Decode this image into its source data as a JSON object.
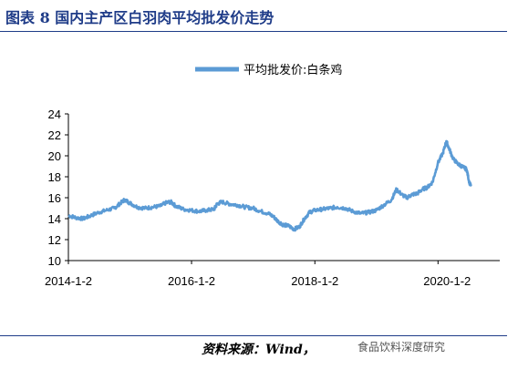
{
  "header": {
    "title": "图表 8 国内主产区白羽肉平均批发价走势"
  },
  "footer": {
    "source": "资料来源：Wind，",
    "watermark": "食品饮料深度研究"
  },
  "chart_data": {
    "type": "line",
    "title": "",
    "xlabel": "",
    "ylabel": "",
    "ylim": [
      10,
      24
    ],
    "yticks": [
      10,
      12,
      14,
      16,
      18,
      20,
      22,
      24
    ],
    "xticks": [
      "2014-1-2",
      "2016-1-2",
      "2018-1-2",
      "2020-1-2"
    ],
    "grid": false,
    "legend_position": "top-center",
    "series": [
      {
        "name": "平均批发价:白条鸡",
        "color": "#5b9bd5",
        "points": [
          [
            "2014-01-02",
            14.3
          ],
          [
            "2014-02-15",
            14.1
          ],
          [
            "2014-04-01",
            14.0
          ],
          [
            "2014-05-15",
            14.3
          ],
          [
            "2014-07-01",
            14.6
          ],
          [
            "2014-08-15",
            14.8
          ],
          [
            "2014-10-01",
            15.0
          ],
          [
            "2014-11-01",
            15.4
          ],
          [
            "2014-12-01",
            15.8
          ],
          [
            "2015-01-01",
            15.5
          ],
          [
            "2015-02-15",
            15.1
          ],
          [
            "2015-04-01",
            15.0
          ],
          [
            "2015-05-15",
            15.1
          ],
          [
            "2015-07-01",
            15.2
          ],
          [
            "2015-08-01",
            15.5
          ],
          [
            "2015-09-01",
            15.6
          ],
          [
            "2015-10-01",
            15.2
          ],
          [
            "2015-11-15",
            14.9
          ],
          [
            "2016-01-02",
            14.8
          ],
          [
            "2016-02-15",
            14.7
          ],
          [
            "2016-04-01",
            14.8
          ],
          [
            "2016-05-15",
            14.9
          ],
          [
            "2016-06-01",
            15.4
          ],
          [
            "2016-07-01",
            15.6
          ],
          [
            "2016-08-15",
            15.4
          ],
          [
            "2016-10-01",
            15.3
          ],
          [
            "2016-11-15",
            15.1
          ],
          [
            "2017-01-01",
            15.0
          ],
          [
            "2017-02-15",
            14.7
          ],
          [
            "2017-04-01",
            14.5
          ],
          [
            "2017-05-01",
            14.2
          ],
          [
            "2017-06-01",
            13.7
          ],
          [
            "2017-07-01",
            13.4
          ],
          [
            "2017-08-01",
            13.3
          ],
          [
            "2017-09-01",
            13.0
          ],
          [
            "2017-10-01",
            13.2
          ],
          [
            "2017-11-01",
            14.0
          ],
          [
            "2017-12-01",
            14.6
          ],
          [
            "2018-01-02",
            14.8
          ],
          [
            "2018-02-15",
            14.9
          ],
          [
            "2018-04-01",
            15.0
          ],
          [
            "2018-05-15",
            15.1
          ],
          [
            "2018-07-01",
            15.0
          ],
          [
            "2018-08-15",
            14.7
          ],
          [
            "2018-10-01",
            14.5
          ],
          [
            "2018-11-15",
            14.6
          ],
          [
            "2019-01-01",
            14.8
          ],
          [
            "2019-02-15",
            15.3
          ],
          [
            "2019-04-01",
            15.8
          ],
          [
            "2019-05-01",
            16.8
          ],
          [
            "2019-06-01",
            16.3
          ],
          [
            "2019-07-01",
            16.0
          ],
          [
            "2019-08-01",
            16.3
          ],
          [
            "2019-09-01",
            16.4
          ],
          [
            "2019-10-01",
            16.8
          ],
          [
            "2019-11-01",
            17.0
          ],
          [
            "2019-12-01",
            17.5
          ],
          [
            "2020-01-01",
            19.3
          ],
          [
            "2020-02-01",
            20.3
          ],
          [
            "2020-02-20",
            21.4
          ],
          [
            "2020-03-10",
            20.6
          ],
          [
            "2020-04-01",
            19.7
          ],
          [
            "2020-05-01",
            19.2
          ],
          [
            "2020-06-01",
            18.9
          ],
          [
            "2020-06-20",
            18.7
          ],
          [
            "2020-07-05",
            17.5
          ],
          [
            "2020-07-15",
            17.1
          ]
        ]
      }
    ]
  }
}
